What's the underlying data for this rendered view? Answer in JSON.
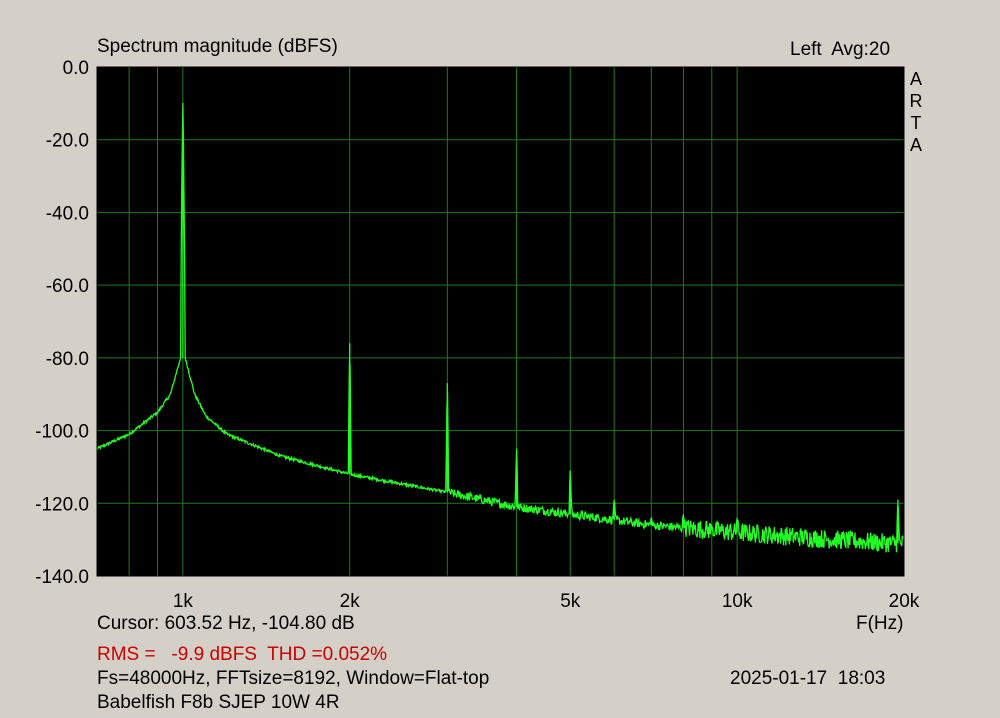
{
  "header": {
    "title": "Spectrum magnitude (dBFS)",
    "channel_avg": "Left  Avg:20",
    "brand_letters": [
      "A",
      "R",
      "T",
      "A"
    ]
  },
  "footer": {
    "cursor": "Cursor: 603.52 Hz, -104.80 dB",
    "x_unit": "F(Hz)",
    "rms_thd": "RMS =   -9.9 dBFS  THD =0.052%",
    "fs_info": "Fs=48000Hz, FFTsize=8192, Window=Flat-top",
    "datetime": "2025-01-17  18:03",
    "device": "Babelfish F8b SJEP 10W 4R"
  },
  "colors": {
    "plot_bg": "#000000",
    "grid": "#1f7a1f",
    "trace": "#22ff22",
    "window_bg": "#d4d0c8",
    "rms_text": "#cc0000"
  },
  "chart_data": {
    "type": "line",
    "title": "Spectrum magnitude (dBFS)",
    "xlabel": "F(Hz)",
    "ylabel": "",
    "x_scale": "log",
    "xlim": [
      700,
      20000
    ],
    "ylim": [
      -140,
      0
    ],
    "grid": true,
    "yticks": [
      0,
      -20,
      -40,
      -60,
      -80,
      -100,
      -120,
      -140
    ],
    "ytick_labels": [
      "0.0",
      "-20.0",
      "-40.0",
      "-60.0",
      "-80.0",
      "-100.0",
      "-120.0",
      "-140.0"
    ],
    "xticks": [
      1000,
      2000,
      5000,
      10000,
      20000
    ],
    "xtick_labels": [
      "1k",
      "2k",
      "5k",
      "10k",
      "20k"
    ],
    "x_gridlines": [
      800,
      900,
      1000,
      2000,
      3000,
      4000,
      5000,
      6000,
      7000,
      8000,
      9000,
      10000,
      20000
    ],
    "series": [
      {
        "noise_floor": {
          "x": [
            700,
            800,
            900,
            950,
            990,
            1010,
            1050,
            1100,
            1200,
            1500,
            2000,
            3000,
            4000,
            5000,
            7000,
            10000,
            15000,
            19000,
            20000
          ],
          "y": [
            -105,
            -101,
            -95,
            -90,
            -80,
            -80,
            -90,
            -96,
            -101,
            -107,
            -112,
            -117,
            -121,
            -123,
            -126,
            -128,
            -130,
            -131,
            -131
          ]
        },
        "peaks": [
          {
            "x": 1000,
            "y": -9.9
          },
          {
            "x": 2000,
            "y": -76
          },
          {
            "x": 3000,
            "y": -87
          },
          {
            "x": 4000,
            "y": -105
          },
          {
            "x": 5000,
            "y": -111
          },
          {
            "x": 6000,
            "y": -119
          },
          {
            "x": 7000,
            "y": -124
          },
          {
            "x": 8000,
            "y": -123
          },
          {
            "x": 9000,
            "y": -126
          },
          {
            "x": 10000,
            "y": -124
          },
          {
            "x": 19500,
            "y": -119
          }
        ]
      }
    ]
  }
}
